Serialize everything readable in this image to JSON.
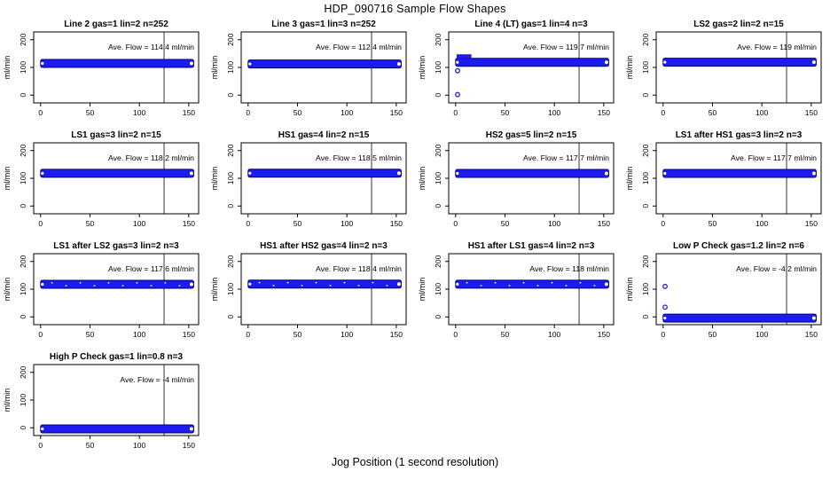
{
  "page": {
    "title": "HDP_090716  Sample Flow Shapes",
    "xlabel": "Jog Position (1 second resolution)"
  },
  "colors": {
    "band_fill": "#1c1cf0",
    "band_edge": "#00007a",
    "outlier_stroke": "#2020d0",
    "end_dot": "#fff9cc",
    "axis": "#000000",
    "background": "#ffffff"
  },
  "chart_data": {
    "type": "scatter",
    "title": "HDP_090716  Sample Flow Shapes",
    "xlabel": "Jog Position (1 second resolution)",
    "ylabel": "ml/min",
    "x_ticks": [
      0,
      50,
      100,
      150
    ],
    "y_ticks": [
      0,
      100,
      200
    ],
    "xlim": [
      -7,
      160
    ],
    "ylim": [
      -28,
      228
    ],
    "reference_line_x": 125,
    "grid": false,
    "band_x_start": 0,
    "band_x_end": 155,
    "panels": [
      {
        "title": "Line 2 gas=1 lin=2 n=252",
        "ave_flow": 114.4,
        "ave_text": "Ave. Flow =  114.4  ml/min",
        "band_y": 114.4,
        "outliers": [],
        "speckled": false,
        "start_noise": false
      },
      {
        "title": "Line 3 gas=1 lin=3 n=252",
        "ave_flow": 112.4,
        "ave_text": "Ave. Flow =  112.4  ml/min",
        "band_y": 112.4,
        "outliers": [],
        "speckled": false,
        "start_noise": false
      },
      {
        "title": "Line 4 (LT) gas=1 lin=4 n=3",
        "ave_flow": 119.7,
        "ave_text": "Ave. Flow =  119.7  ml/min",
        "band_y": 118.5,
        "outliers": [
          [
            2,
            2
          ],
          [
            2,
            88
          ]
        ],
        "speckled": false,
        "start_noise": true
      },
      {
        "title": "LS2 gas=2 lin=2 n=15",
        "ave_flow": 119,
        "ave_text": "Ave. Flow =  119  ml/min",
        "band_y": 119,
        "outliers": [],
        "speckled": false,
        "start_noise": false
      },
      {
        "title": "LS1 gas=3 lin=2 n=15",
        "ave_flow": 118.2,
        "ave_text": "Ave. Flow =  118.2  ml/min",
        "band_y": 118.2,
        "outliers": [],
        "speckled": false,
        "start_noise": false
      },
      {
        "title": "HS1 gas=4 lin=2 n=15",
        "ave_flow": 118.5,
        "ave_text": "Ave. Flow =  118.5  ml/min",
        "band_y": 118.5,
        "outliers": [],
        "speckled": false,
        "start_noise": false
      },
      {
        "title": "HS2 gas=5 lin=2 n=15",
        "ave_flow": 117.7,
        "ave_text": "Ave. Flow =  117.7  ml/min",
        "band_y": 117.7,
        "outliers": [],
        "speckled": false,
        "start_noise": false
      },
      {
        "title": "LS1 after HS1 gas=3 lin=2 n=3",
        "ave_flow": 117.7,
        "ave_text": "Ave. Flow =  117.7  ml/min",
        "band_y": 117.7,
        "outliers": [],
        "speckled": false,
        "start_noise": false
      },
      {
        "title": "LS1 after LS2 gas=3 lin=2 n=3",
        "ave_flow": 117.6,
        "ave_text": "Ave. Flow =  117.6  ml/min",
        "band_y": 117.6,
        "outliers": [],
        "speckled": true,
        "start_noise": false
      },
      {
        "title": "HS1 after HS2 gas=4 lin=2 n=3",
        "ave_flow": 118.4,
        "ave_text": "Ave. Flow =  118.4  ml/min",
        "band_y": 118.4,
        "outliers": [],
        "speckled": true,
        "start_noise": false
      },
      {
        "title": "HS1 after LS1 gas=4 lin=2 n=3",
        "ave_flow": 118,
        "ave_text": "Ave. Flow =  118  ml/min",
        "band_y": 118,
        "outliers": [],
        "speckled": true,
        "start_noise": false
      },
      {
        "title": "Low P Check gas=1.2 lin=2 n=6",
        "ave_flow": -4.2,
        "ave_text": "Ave. Flow =  -4.2  ml/min",
        "band_y": -4.2,
        "outliers": [
          [
            2,
            110
          ],
          [
            2,
            35
          ]
        ],
        "speckled": false,
        "start_noise": false
      },
      {
        "title": "High P Check gas=1 lin=0.8 n=3",
        "ave_flow": -4,
        "ave_text": "Ave. Flow =  -4  ml/min",
        "band_y": -4,
        "outliers": [],
        "speckled": false,
        "start_noise": false
      }
    ]
  }
}
